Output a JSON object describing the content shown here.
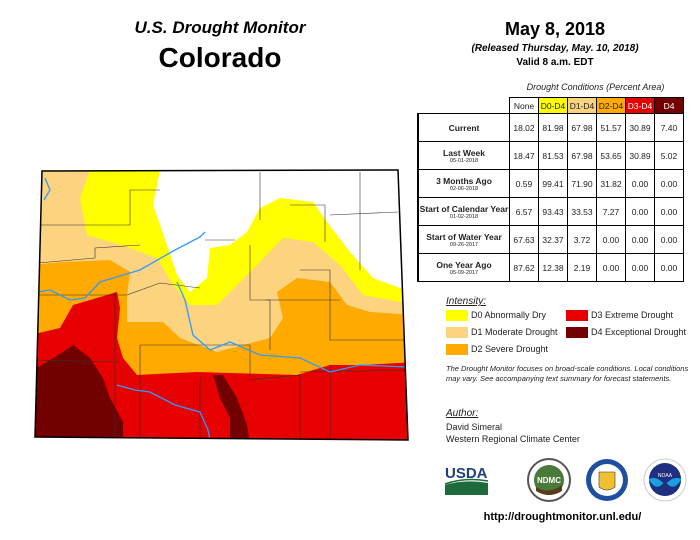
{
  "header": {
    "title": "U.S. Drought Monitor",
    "state": "Colorado",
    "date": "May 8, 2018",
    "released": "(Released Thursday, May. 10, 2018)",
    "valid": "Valid 8 a.m. EDT"
  },
  "table": {
    "caption": "Drought Conditions (Percent Area)",
    "columns": [
      "None",
      "D0-D4",
      "D1-D4",
      "D2-D4",
      "D3-D4",
      "D4"
    ],
    "column_colors": [
      "#ffffff",
      "#ffff00",
      "#fcd37f",
      "#ffaa00",
      "#e60000",
      "#730000"
    ],
    "rows": [
      {
        "label": "Current",
        "date": "",
        "values": [
          "18.02",
          "81.98",
          "67.98",
          "51.57",
          "30.89",
          "7.40"
        ]
      },
      {
        "label": "Last Week",
        "date": "05-01-2018",
        "values": [
          "18.47",
          "81.53",
          "67.98",
          "53.65",
          "30.89",
          "5.02"
        ]
      },
      {
        "label": "3 Months Ago",
        "date": "02-06-2018",
        "values": [
          "0.59",
          "99.41",
          "71.90",
          "31.82",
          "0.00",
          "0.00"
        ]
      },
      {
        "label": "Start of Calendar Year",
        "date": "01-02-2018",
        "values": [
          "6.57",
          "93.43",
          "33.53",
          "7.27",
          "0.00",
          "0.00"
        ]
      },
      {
        "label": "Start of Water Year",
        "date": "09-26-2017",
        "values": [
          "67.63",
          "32.37",
          "3.72",
          "0.00",
          "0.00",
          "0.00"
        ]
      },
      {
        "label": "One Year Ago",
        "date": "05-09-2017",
        "values": [
          "87.62",
          "12.38",
          "2.19",
          "0.00",
          "0.00",
          "0.00"
        ]
      }
    ]
  },
  "legend": {
    "title": "Intensity:",
    "items": [
      {
        "label": "D0 Abnormally Dry",
        "color": "#ffff00"
      },
      {
        "label": "D1 Moderate Drought",
        "color": "#fcd37f"
      },
      {
        "label": "D2 Severe Drought",
        "color": "#ffaa00"
      },
      {
        "label": "D3 Extreme Drought",
        "color": "#e60000"
      },
      {
        "label": "D4 Exceptional Drought",
        "color": "#730000"
      }
    ]
  },
  "note": "The Drought Monitor focuses on broad-scale conditions. Local conditions may vary. See accompanying text summary for forecast statements.",
  "author": {
    "heading": "Author:",
    "name": "David Simeral",
    "org": "Western Regional Climate Center"
  },
  "logos": [
    "USDA",
    "NDMC",
    "Department of Commerce",
    "NOAA"
  ],
  "url": "http://droughtmonitor.unl.edu/"
}
